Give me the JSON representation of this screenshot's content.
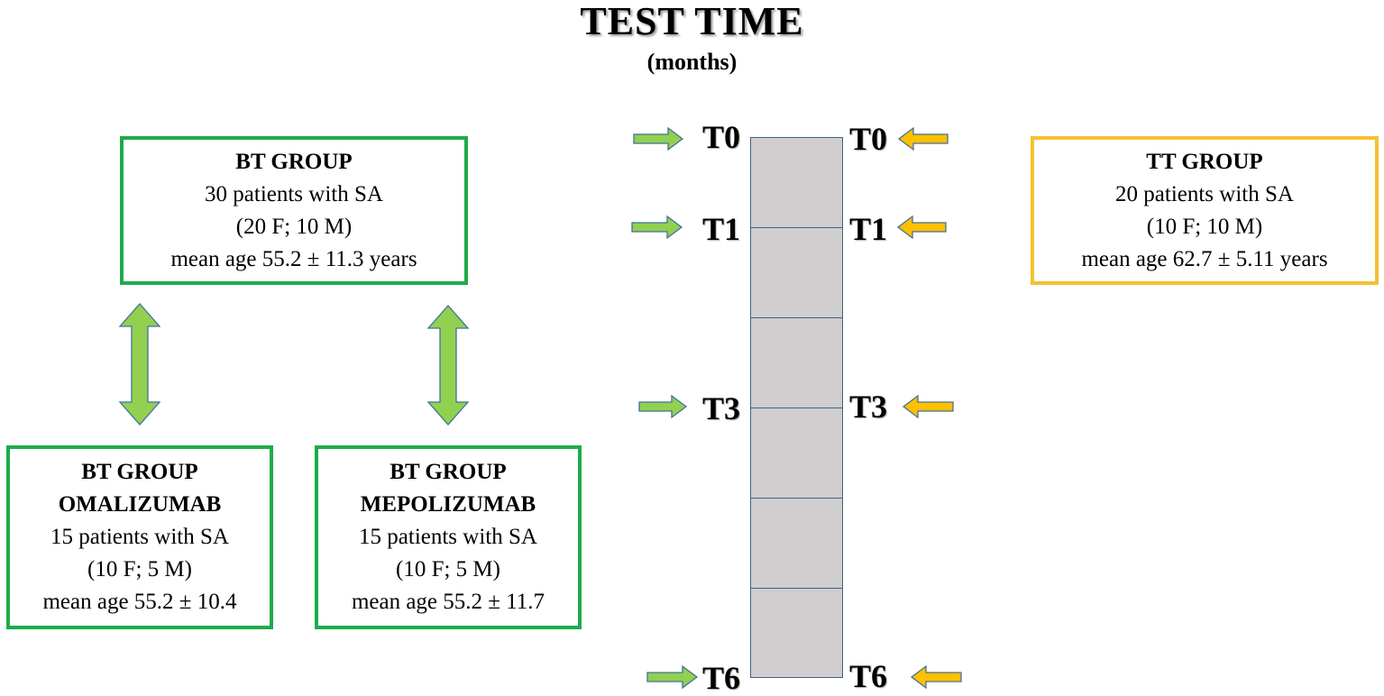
{
  "title": "TEST TIME",
  "subtitle": "(months)",
  "colors": {
    "green": "#1fab4a",
    "arrow_green": "#92d050",
    "orange": "#f5c132",
    "arrow_orange": "#ffc000",
    "bar": "#d0cece",
    "bar_border": "#3f5f8c"
  },
  "bt_group": {
    "title": "BT GROUP",
    "line1": "30 patients with SA",
    "line2": "(20 F; 10 M)",
    "line3": "mean age 55.2 ± 11.3 years"
  },
  "tt_group": {
    "title": "TT GROUP",
    "line1": "20 patients with SA",
    "line2": "(10 F; 10 M)",
    "line3": "mean age 62.7 ± 5.11 years"
  },
  "omalizumab": {
    "title1": "BT GROUP",
    "title2": "OMALIZUMAB",
    "line1": "15 patients with SA",
    "line2": "(10 F; 5 M)",
    "line3": "mean age 55.2 ± 10.4"
  },
  "mepolizumab": {
    "title1": "BT GROUP",
    "title2": "MEPOLIZUMAB",
    "line1": "15 patients with SA",
    "line2": "(10 F; 5 M)",
    "line3": "mean age 55.2 ± 11.7"
  },
  "timepoints": [
    "T0",
    "T1",
    "T3",
    "T6"
  ]
}
